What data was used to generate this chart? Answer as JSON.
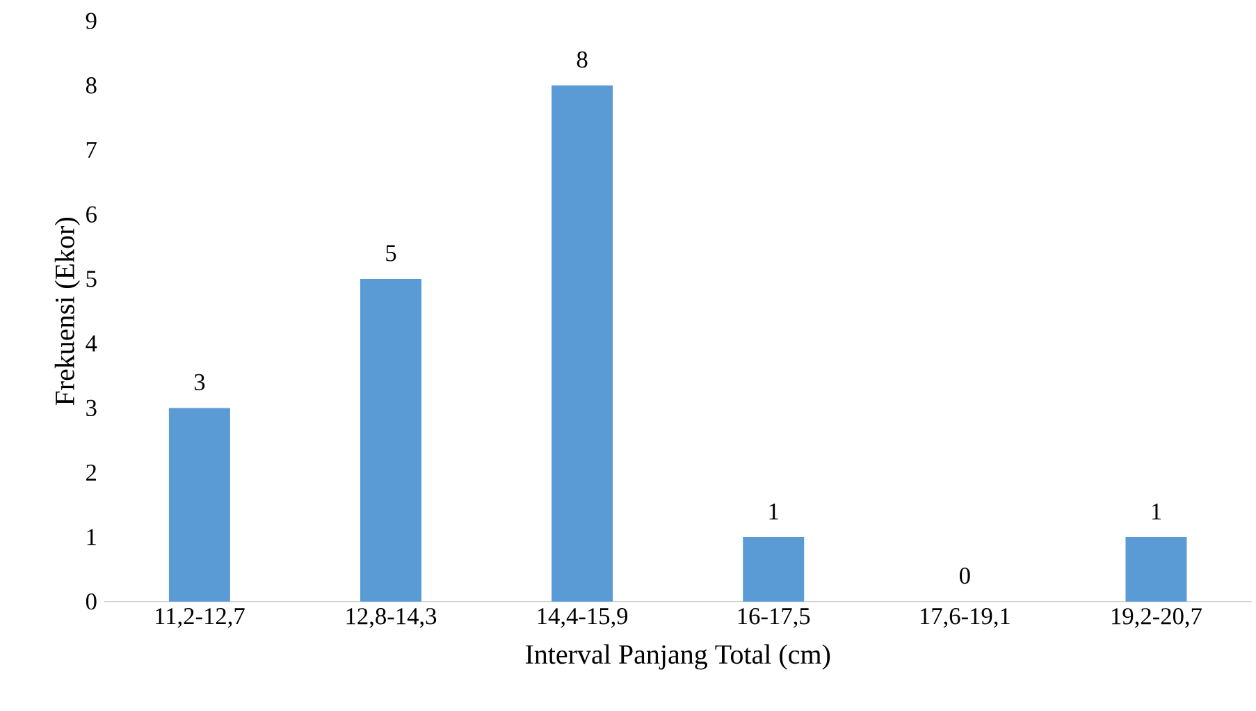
{
  "chart_data": {
    "type": "bar",
    "xlabel": "Interval Panjang Total (cm)",
    "ylabel": "Frekuensi (Ekor)",
    "categories": [
      "11,2-12,7",
      "12,8-14,3",
      "14,4-15,9",
      "16-17,5",
      "17,6-19,1",
      "19,2-20,7"
    ],
    "values": [
      3,
      5,
      8,
      1,
      0,
      1
    ],
    "color": "#5b9bd5",
    "data_labels": true,
    "ylim": [
      0,
      9
    ],
    "yticks": [
      0,
      1,
      2,
      3,
      4,
      5,
      6,
      7,
      8,
      9
    ]
  }
}
